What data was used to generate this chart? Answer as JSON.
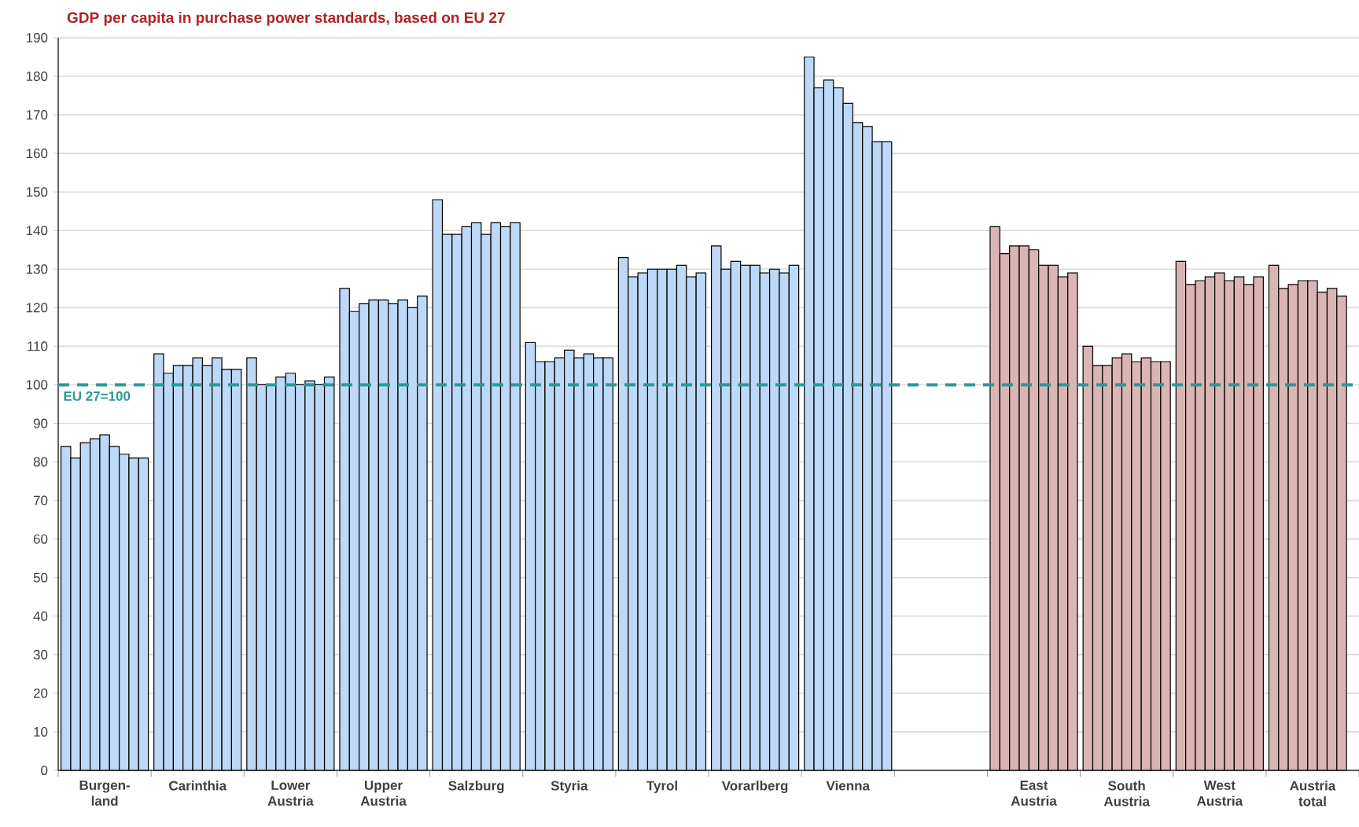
{
  "chart_data": {
    "type": "bar",
    "title": "GDP per capita in purchase power standards, based on EU 27",
    "categories": [
      "Burgen-land",
      "Carinthia",
      "Lower Austria",
      "Upper Austria",
      "Salzburg",
      "Styria",
      "Tyrol",
      "Vorarlberg",
      "Vienna",
      null,
      "East Austria",
      "South Austria",
      "West Austria",
      "Austria total"
    ],
    "series": [
      {
        "colors": [
          "#bdd9f7",
          "#bdd9f7",
          "#bdd9f7",
          "#bdd9f7",
          "#bdd9f7",
          "#bdd9f7",
          "#bdd9f7",
          "#bdd9f7",
          "#bdd9f7",
          null,
          "#dbb5b5",
          "#dbb5b5",
          "#dbb5b5",
          "#dbb5b5"
        ],
        "values": [
          84,
          108,
          107,
          125,
          148,
          111,
          133,
          136,
          185,
          null,
          141,
          110,
          132,
          131
        ]
      },
      {
        "colors": [
          "#bdd9f7",
          "#bdd9f7",
          "#bdd9f7",
          "#bdd9f7",
          "#bdd9f7",
          "#bdd9f7",
          "#bdd9f7",
          "#bdd9f7",
          "#bdd9f7",
          null,
          "#dbb5b5",
          "#dbb5b5",
          "#dbb5b5",
          "#dbb5b5"
        ],
        "values": [
          81,
          103,
          100,
          119,
          139,
          106,
          128,
          130,
          177,
          null,
          134,
          105,
          126,
          125
        ]
      },
      {
        "colors": [
          "#bdd9f7",
          "#bdd9f7",
          "#bdd9f7",
          "#bdd9f7",
          "#bdd9f7",
          "#bdd9f7",
          "#bdd9f7",
          "#bdd9f7",
          "#bdd9f7",
          null,
          "#dbb5b5",
          "#dbb5b5",
          "#dbb5b5",
          "#dbb5b5"
        ],
        "values": [
          85,
          105,
          100,
          121,
          139,
          106,
          129,
          132,
          179,
          null,
          136,
          105,
          127,
          126
        ]
      },
      {
        "colors": [
          "#bdd9f7",
          "#bdd9f7",
          "#bdd9f7",
          "#bdd9f7",
          "#bdd9f7",
          "#bdd9f7",
          "#bdd9f7",
          "#bdd9f7",
          "#bdd9f7",
          null,
          "#dbb5b5",
          "#dbb5b5",
          "#dbb5b5",
          "#dbb5b5"
        ],
        "values": [
          86,
          105,
          102,
          122,
          141,
          107,
          130,
          131,
          177,
          null,
          136,
          107,
          128,
          127
        ]
      },
      {
        "colors": [
          "#bdd9f7",
          "#bdd9f7",
          "#bdd9f7",
          "#bdd9f7",
          "#bdd9f7",
          "#bdd9f7",
          "#bdd9f7",
          "#bdd9f7",
          "#bdd9f7",
          null,
          "#dbb5b5",
          "#dbb5b5",
          "#dbb5b5",
          "#dbb5b5"
        ],
        "values": [
          87,
          107,
          103,
          122,
          142,
          109,
          130,
          131,
          173,
          null,
          135,
          108,
          129,
          127
        ]
      },
      {
        "colors": [
          "#bdd9f7",
          "#bdd9f7",
          "#bdd9f7",
          "#bdd9f7",
          "#bdd9f7",
          "#bdd9f7",
          "#bdd9f7",
          "#bdd9f7",
          "#bdd9f7",
          null,
          "#dbb5b5",
          "#dbb5b5",
          "#dbb5b5",
          "#dbb5b5"
        ],
        "values": [
          84,
          105,
          100,
          121,
          139,
          107,
          130,
          129,
          168,
          null,
          131,
          106,
          127,
          124
        ]
      },
      {
        "colors": [
          "#bdd9f7",
          "#bdd9f7",
          "#bdd9f7",
          "#bdd9f7",
          "#bdd9f7",
          "#bdd9f7",
          "#bdd9f7",
          "#bdd9f7",
          "#bdd9f7",
          null,
          "#dbb5b5",
          "#dbb5b5",
          "#dbb5b5",
          "#dbb5b5"
        ],
        "values": [
          82,
          107,
          101,
          122,
          142,
          108,
          131,
          130,
          167,
          null,
          131,
          107,
          128,
          125
        ]
      },
      {
        "colors": [
          "#bdd9f7",
          "#bdd9f7",
          "#bdd9f7",
          "#bdd9f7",
          "#bdd9f7",
          "#bdd9f7",
          "#bdd9f7",
          "#bdd9f7",
          "#bdd9f7",
          null,
          "#dbb5b5",
          "#dbb5b5",
          "#dbb5b5",
          "#dbb5b5"
        ],
        "values": [
          81,
          104,
          100,
          120,
          141,
          107,
          128,
          129,
          163,
          null,
          128,
          106,
          126,
          123
        ]
      },
      {
        "colors": [
          "#bdd9f7",
          "#bdd9f7",
          "#bdd9f7",
          "#bdd9f7",
          "#bdd9f7",
          "#bdd9f7",
          "#bdd9f7",
          "#bdd9f7",
          "#bdd9f7",
          null,
          "#dbb5b5",
          "#dbb5b5",
          "#dbb5b5",
          "#dbb5b5"
        ],
        "values": [
          81,
          104,
          102,
          123,
          142,
          107,
          129,
          131,
          163,
          null,
          129,
          106,
          128,
          null
        ]
      }
    ],
    "ylim": [
      0,
      190
    ],
    "yticks": [
      0,
      10,
      20,
      30,
      40,
      50,
      60,
      70,
      80,
      90,
      100,
      110,
      120,
      130,
      140,
      150,
      160,
      170,
      180,
      190
    ],
    "grid": "y",
    "ref_lines": [
      {
        "axis": "y",
        "value": 100,
        "label": "EU 27=100",
        "color": "#2a9a97",
        "line_style": "dashed"
      }
    ]
  }
}
